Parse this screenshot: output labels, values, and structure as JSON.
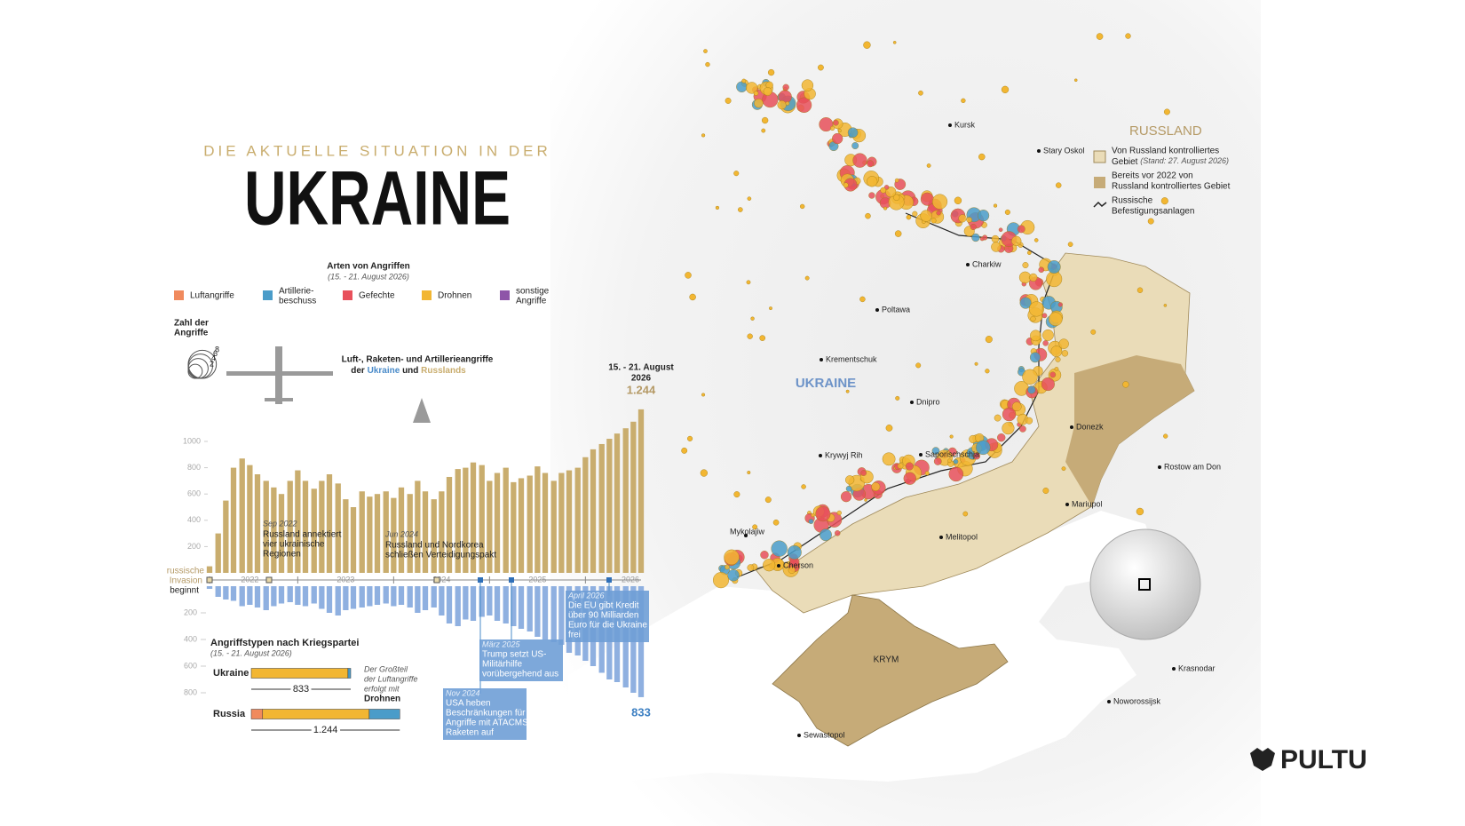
{
  "header": {
    "kicker": "DIE AKTUELLE SITUATION IN DER",
    "title": "UKRAINE"
  },
  "attack_legend": {
    "title": "Arten von Angriffen",
    "subtitle": "(15. - 21. August 2026)",
    "items": [
      {
        "label": [
          "Luftangriffe"
        ],
        "color": "#f08a5d"
      },
      {
        "label": [
          "Artillerie-",
          "beschuss"
        ],
        "color": "#4a9cc9"
      },
      {
        "label": [
          "Gefechte"
        ],
        "color": "#e8505b"
      },
      {
        "label": [
          "Drohnen"
        ],
        "color": "#f2b632"
      },
      {
        "label": [
          "sonstige",
          "Angriffe"
        ],
        "color": "#8e55a8"
      }
    ]
  },
  "size_legend": {
    "title": [
      "Zahl der",
      "Angriffe"
    ],
    "values": [
      8,
      6,
      4,
      2
    ]
  },
  "chart_data": [
    {
      "type": "bar",
      "title_parts": [
        "Luft-, Raketen- und Artillerieangriffe",
        "der",
        "Ukraine",
        "und",
        "Russlands"
      ],
      "end_label": [
        "15. - 21. August",
        "2026"
      ],
      "last_value_label": "1.244",
      "last_value_label_y2": "833",
      "invasion_label": [
        "russische",
        "Invasion",
        "beginnt"
      ],
      "xlim": [
        2022.08,
        2026.58
      ],
      "xticks": [
        {
          "value": 2022,
          "label": "2022"
        },
        {
          "value": 2023,
          "label": "2023"
        },
        {
          "value": 2024,
          "label": "2024"
        },
        {
          "value": 2025,
          "label": "2025"
        },
        {
          "value": 2026,
          "label": "2026"
        }
      ],
      "x": [
        2022.08,
        2022.17,
        2022.25,
        2022.33,
        2022.42,
        2022.5,
        2022.58,
        2022.67,
        2022.75,
        2022.83,
        2022.92,
        2023.0,
        2023.08,
        2023.17,
        2023.25,
        2023.33,
        2023.42,
        2023.5,
        2023.58,
        2023.67,
        2023.75,
        2023.83,
        2023.92,
        2024.0,
        2024.08,
        2024.17,
        2024.25,
        2024.33,
        2024.42,
        2024.5,
        2024.58,
        2024.67,
        2024.75,
        2024.83,
        2024.92,
        2025.0,
        2025.08,
        2025.17,
        2025.25,
        2025.33,
        2025.42,
        2025.5,
        2025.58,
        2025.67,
        2025.75,
        2025.83,
        2025.92,
        2026.0,
        2026.08,
        2026.17,
        2026.25,
        2026.33,
        2026.42,
        2026.5,
        2026.58
      ],
      "ylim": [
        0,
        1300
      ],
      "yticks": [
        200,
        400,
        600,
        800,
        1000
      ],
      "y2lim": [
        0,
        900
      ],
      "y2ticks": [
        200,
        400,
        600,
        800
      ],
      "series": [
        {
          "color": "#c9ad6e",
          "values": [
            50,
            300,
            550,
            800,
            870,
            820,
            750,
            700,
            650,
            600,
            700,
            780,
            700,
            640,
            700,
            750,
            680,
            560,
            500,
            620,
            580,
            600,
            620,
            570,
            650,
            600,
            700,
            620,
            560,
            620,
            730,
            790,
            800,
            840,
            820,
            700,
            760,
            800,
            690,
            720,
            740,
            810,
            760,
            700,
            760,
            780,
            800,
            880,
            940,
            980,
            1020,
            1060,
            1100,
            1150,
            1244
          ]
        },
        {
          "color": "#8fb0e0",
          "axis": "y2",
          "values": [
            20,
            80,
            100,
            110,
            150,
            140,
            160,
            180,
            150,
            130,
            120,
            140,
            150,
            130,
            170,
            200,
            220,
            180,
            170,
            160,
            150,
            140,
            130,
            150,
            140,
            160,
            200,
            180,
            160,
            220,
            280,
            300,
            250,
            260,
            230,
            220,
            260,
            280,
            300,
            320,
            340,
            380,
            400,
            420,
            440,
            500,
            520,
            560,
            600,
            650,
            700,
            720,
            760,
            800,
            833
          ]
        }
      ],
      "annotations": [
        {
          "date": "Sep 2022",
          "lines": [
            "Russland annektiert",
            "vier ukrainische",
            "Regionen"
          ]
        },
        {
          "date": "Jun 2024",
          "lines": [
            "Russland und Nordkorea",
            "schließen Verteidigungspakt"
          ]
        }
      ],
      "events": [
        {
          "date": "Nov 2024",
          "lines": [
            "USA heben",
            "Beschränkungen für",
            "Angriffe mit ATACMS-",
            "Raketen auf"
          ]
        },
        {
          "date": "März 2025",
          "lines": [
            "Trump setzt US-",
            "Militärhilfe",
            "vorübergehend aus"
          ]
        },
        {
          "date": "April 2026",
          "lines": [
            "Die EU gibt Kredit",
            "über 90 Milliarden",
            "Euro für die Ukraine",
            "frei"
          ]
        }
      ]
    },
    {
      "type": "hbar",
      "title": "Angriffstypen nach Kriegspartei",
      "subtitle": "(15. - 21. August 2026)",
      "categories": [
        "Ukraine",
        "Russia"
      ],
      "series": [
        {
          "color": "#f08a5d",
          "values": [
            0,
            95
          ]
        },
        {
          "color": "#f2b632",
          "values": [
            810,
            893
          ]
        },
        {
          "color": "#4a9cc9",
          "values": [
            23,
            256
          ]
        }
      ],
      "totals": [
        833,
        1244
      ],
      "total_labels": [
        "833",
        "1.244"
      ],
      "note": [
        "Der Großteil",
        "der Luftangriffe",
        "erfolgt mit",
        "Drohnen"
      ]
    }
  ],
  "map": {
    "country_labels": [
      "RUSSLAND",
      "UKRAINE",
      "KRYM"
    ],
    "cities": [
      "Kursk",
      "Stary Oskol",
      "Charkiw",
      "Poltawa",
      "Krementschuk",
      "Dnipro",
      "Donezk",
      "Rostow am Don",
      "Krywyj Rih",
      "Saporischschja",
      "Mariupol",
      "Melitopol",
      "Mykolajiw",
      "Cherson",
      "Krasnodar",
      "Noworossijsk",
      "Sewastopol"
    ],
    "legend": [
      {
        "label": [
          "Von Russland kontrolliertes",
          "Gebiet"
        ],
        "note": "(Stand: 27. August 2026)",
        "color": "#eadcb8"
      },
      {
        "label": [
          "Bereits vor 2022 von",
          "Russland kontrolliertes Gebiet"
        ],
        "color": "#c6ab78"
      },
      {
        "label": [
          "Russische",
          "Befestigungsanlagen"
        ]
      }
    ]
  },
  "logo": "PULTU"
}
